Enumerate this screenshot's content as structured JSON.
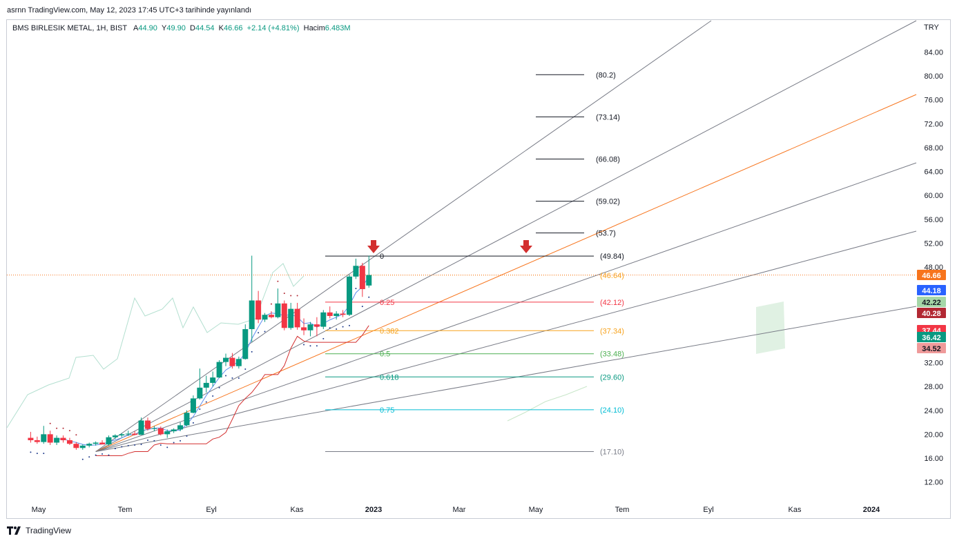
{
  "header": {
    "published_line": "asrnn TradingView.com, May 12, 2023 17:45 UTC+3 tarihinde yayınlandı"
  },
  "legend": {
    "symbol": "BMS BIRLESIK METAL, 1H, BIST",
    "open_label": "A",
    "open_value": "44.90",
    "high_label": "Y",
    "high_value": "49.90",
    "low_label": "D",
    "low_value": "44.54",
    "close_label": "K",
    "close_value": "46.66",
    "change": "+2.14 (+4.81%)",
    "volume_label": "Hacim",
    "volume_value": "6.483M"
  },
  "currency": "TRY",
  "footer": {
    "brand": "TradingView"
  },
  "colors": {
    "up": "#089981",
    "down": "#f23645",
    "fan_orange": "#f7741c",
    "fan_grey": "#787b86"
  },
  "chart_data": {
    "type": "candlestick",
    "y_axis": {
      "min": 10,
      "max": 88,
      "ticks": [
        "12.00",
        "16.00",
        "20.00",
        "24.00",
        "28.00",
        "32.00",
        "48.00",
        "52.00",
        "56.00",
        "60.00",
        "64.00",
        "68.00",
        "72.00",
        "76.00",
        "80.00",
        "84.00"
      ]
    },
    "x_axis": {
      "tick_labels": [
        "May",
        "Tem",
        "Eyl",
        "Kas",
        "2023",
        "Mar",
        "May",
        "Tem",
        "Eyl",
        "Kas",
        "2024"
      ]
    },
    "price_tags": [
      {
        "label": "46.66",
        "value": 46.66,
        "color": "#f7741c"
      },
      {
        "label": "44.18",
        "value": 44.18,
        "color": "#2962ff"
      },
      {
        "label": "42.22",
        "value": 42.22,
        "color": "#a5d6a7"
      },
      {
        "label": "40.28",
        "value": 40.28,
        "color": "#b22833"
      },
      {
        "label": "37.44",
        "value": 37.44,
        "color": "#f23645"
      },
      {
        "label": "36.42",
        "value": 36.42,
        "color": "#089981"
      },
      {
        "label": "34.52",
        "value": 34.52,
        "color": "#ef9a9a"
      }
    ],
    "targets": [
      {
        "label": "(80.2)",
        "value": 80.2
      },
      {
        "label": "(73.14)",
        "value": 73.14
      },
      {
        "label": "(66.08)",
        "value": 66.08
      },
      {
        "label": "(59.02)",
        "value": 59.02
      },
      {
        "label": "(53.7)",
        "value": 53.7
      }
    ],
    "fibonacci": [
      {
        "ratio": "0",
        "label": "(49.84)",
        "value": 49.84,
        "color": "#131722"
      },
      {
        "ratio": "",
        "label": "(46.64)",
        "value": 46.64,
        "color": "#f7a21c"
      },
      {
        "ratio": "0.25",
        "label": "(42.12)",
        "value": 42.12,
        "color": "#f23645"
      },
      {
        "ratio": "0.382",
        "label": "(37.34)",
        "value": 37.34,
        "color": "#f7a21c"
      },
      {
        "ratio": "0.5",
        "label": "(33.48)",
        "value": 33.48,
        "color": "#4caf50"
      },
      {
        "ratio": "0.618",
        "label": "(29.60)",
        "value": 29.6,
        "color": "#089981"
      },
      {
        "ratio": "0.75",
        "label": "(24.10)",
        "value": 24.1,
        "color": "#00bcd4"
      },
      {
        "ratio": "",
        "label": "(17.10)",
        "value": 17.1,
        "color": "#787b86"
      }
    ],
    "candles": [
      {
        "t": 0.3,
        "o": 19.4,
        "h": 20.4,
        "l": 18.6,
        "c": 19.0
      },
      {
        "t": 0.6,
        "o": 19.0,
        "h": 19.6,
        "l": 18.4,
        "c": 18.7
      },
      {
        "t": 0.9,
        "o": 18.7,
        "h": 21.4,
        "l": 18.4,
        "c": 20.0
      },
      {
        "t": 1.2,
        "o": 20.0,
        "h": 20.6,
        "l": 18.2,
        "c": 18.6
      },
      {
        "t": 1.5,
        "o": 18.6,
        "h": 19.8,
        "l": 18.2,
        "c": 19.4
      },
      {
        "t": 1.8,
        "o": 19.4,
        "h": 19.8,
        "l": 18.6,
        "c": 19.0
      },
      {
        "t": 2.1,
        "o": 19.0,
        "h": 19.4,
        "l": 18.2,
        "c": 18.4
      },
      {
        "t": 2.4,
        "o": 18.4,
        "h": 18.7,
        "l": 17.4,
        "c": 17.7
      },
      {
        "t": 2.7,
        "o": 17.7,
        "h": 18.3,
        "l": 17.4,
        "c": 18.1
      },
      {
        "t": 3.0,
        "o": 18.1,
        "h": 18.6,
        "l": 17.8,
        "c": 18.4
      },
      {
        "t": 3.3,
        "o": 18.4,
        "h": 18.8,
        "l": 18.1,
        "c": 18.6
      },
      {
        "t": 3.6,
        "o": 18.6,
        "h": 19.0,
        "l": 18.3,
        "c": 18.3
      },
      {
        "t": 3.9,
        "o": 18.3,
        "h": 19.8,
        "l": 18.1,
        "c": 19.5
      },
      {
        "t": 4.2,
        "o": 19.5,
        "h": 20.0,
        "l": 19.2,
        "c": 19.8
      },
      {
        "t": 4.5,
        "o": 19.8,
        "h": 20.2,
        "l": 19.5,
        "c": 20.0
      },
      {
        "t": 4.8,
        "o": 20.0,
        "h": 20.6,
        "l": 19.7,
        "c": 20.1
      },
      {
        "t": 5.1,
        "o": 20.1,
        "h": 20.5,
        "l": 19.8,
        "c": 19.9
      },
      {
        "t": 5.4,
        "o": 19.9,
        "h": 22.8,
        "l": 19.9,
        "c": 22.3
      },
      {
        "t": 5.7,
        "o": 22.3,
        "h": 22.8,
        "l": 20.6,
        "c": 20.9
      },
      {
        "t": 6.0,
        "o": 20.9,
        "h": 21.4,
        "l": 20.5,
        "c": 21.0
      },
      {
        "t": 6.3,
        "o": 21.0,
        "h": 21.3,
        "l": 19.8,
        "c": 20.0
      },
      {
        "t": 6.6,
        "o": 20.0,
        "h": 20.8,
        "l": 19.4,
        "c": 20.5
      },
      {
        "t": 6.9,
        "o": 20.5,
        "h": 21.0,
        "l": 20.2,
        "c": 20.8
      },
      {
        "t": 7.2,
        "o": 20.8,
        "h": 22.0,
        "l": 20.5,
        "c": 21.5
      },
      {
        "t": 7.5,
        "o": 21.5,
        "h": 24.0,
        "l": 21.3,
        "c": 23.6
      },
      {
        "t": 7.8,
        "o": 23.6,
        "h": 26.5,
        "l": 23.5,
        "c": 26.0
      },
      {
        "t": 8.1,
        "o": 26.0,
        "h": 31.0,
        "l": 25.8,
        "c": 27.8
      },
      {
        "t": 8.4,
        "o": 27.8,
        "h": 29.8,
        "l": 27.0,
        "c": 28.6
      },
      {
        "t": 8.7,
        "o": 28.6,
        "h": 30.5,
        "l": 28.0,
        "c": 29.5
      },
      {
        "t": 9.0,
        "o": 29.5,
        "h": 32.4,
        "l": 29.4,
        "c": 32.1
      },
      {
        "t": 9.3,
        "o": 32.1,
        "h": 33.5,
        "l": 31.4,
        "c": 32.8
      },
      {
        "t": 9.6,
        "o": 32.8,
        "h": 33.6,
        "l": 31.0,
        "c": 31.4
      },
      {
        "t": 9.9,
        "o": 31.4,
        "h": 33.0,
        "l": 31.0,
        "c": 32.6
      },
      {
        "t": 10.2,
        "o": 32.6,
        "h": 38.4,
        "l": 32.5,
        "c": 37.6
      },
      {
        "t": 10.5,
        "o": 37.6,
        "h": 49.9,
        "l": 35.4,
        "c": 42.4
      },
      {
        "t": 10.8,
        "o": 42.4,
        "h": 44.0,
        "l": 38.6,
        "c": 39.2
      },
      {
        "t": 11.1,
        "o": 39.2,
        "h": 40.3,
        "l": 38.8,
        "c": 40.0
      },
      {
        "t": 11.4,
        "o": 40.0,
        "h": 40.6,
        "l": 39.4,
        "c": 39.6
      },
      {
        "t": 11.7,
        "o": 39.6,
        "h": 44.4,
        "l": 39.4,
        "c": 41.9
      },
      {
        "t": 12.0,
        "o": 41.9,
        "h": 42.4,
        "l": 37.4,
        "c": 37.8
      },
      {
        "t": 12.3,
        "o": 37.8,
        "h": 42.0,
        "l": 37.5,
        "c": 41.0
      },
      {
        "t": 12.6,
        "o": 41.0,
        "h": 42.0,
        "l": 37.5,
        "c": 37.9
      },
      {
        "t": 12.9,
        "o": 37.9,
        "h": 39.4,
        "l": 36.6,
        "c": 37.4
      },
      {
        "t": 13.2,
        "o": 37.4,
        "h": 38.8,
        "l": 36.4,
        "c": 38.4
      },
      {
        "t": 13.5,
        "o": 38.4,
        "h": 39.6,
        "l": 36.4,
        "c": 38.0
      },
      {
        "t": 13.8,
        "o": 38.0,
        "h": 40.8,
        "l": 37.6,
        "c": 40.4
      },
      {
        "t": 14.1,
        "o": 40.4,
        "h": 41.4,
        "l": 39.4,
        "c": 39.8
      },
      {
        "t": 14.4,
        "o": 39.8,
        "h": 40.6,
        "l": 39.2,
        "c": 40.2
      },
      {
        "t": 14.7,
        "o": 40.2,
        "h": 40.8,
        "l": 39.6,
        "c": 40.0
      },
      {
        "t": 15.0,
        "o": 40.0,
        "h": 46.7,
        "l": 39.8,
        "c": 46.4
      },
      {
        "t": 15.3,
        "o": 46.4,
        "h": 49.4,
        "l": 46.0,
        "c": 48.2
      },
      {
        "t": 15.6,
        "o": 48.2,
        "h": 48.7,
        "l": 43.0,
        "c": 44.3
      },
      {
        "t": 15.9,
        "o": 44.9,
        "h": 49.9,
        "l": 44.54,
        "c": 46.66
      }
    ]
  }
}
